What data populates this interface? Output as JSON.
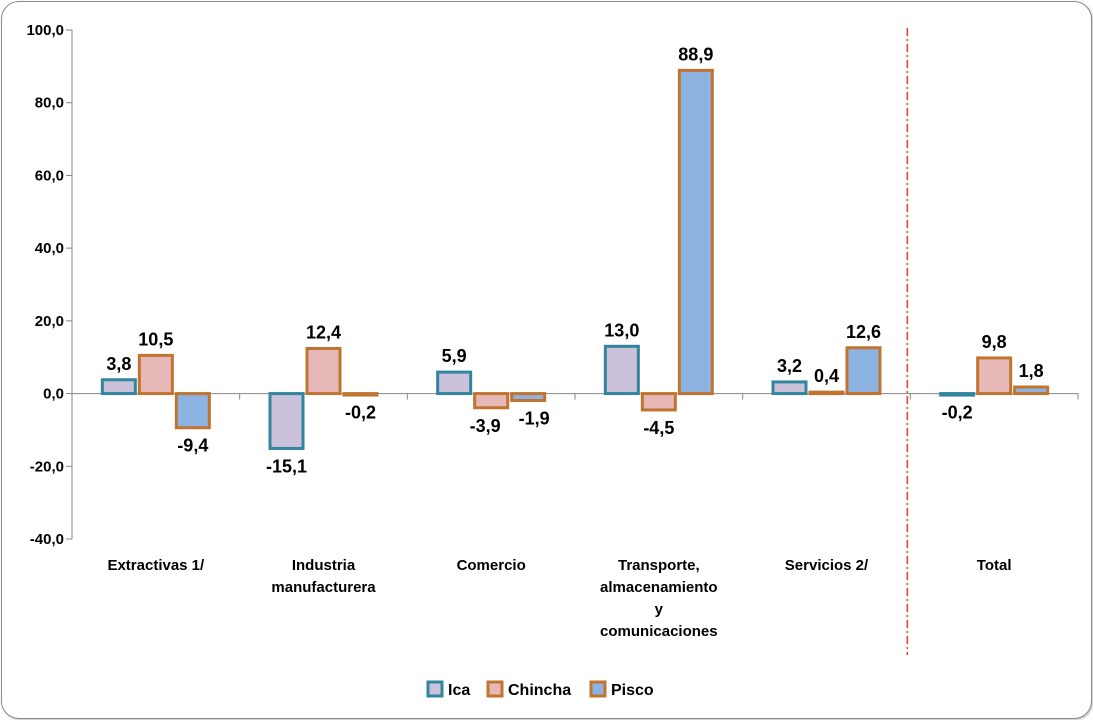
{
  "chart_data": {
    "type": "bar",
    "title": "",
    "xlabel": "",
    "ylabel": "",
    "categories": [
      [
        "Extractivas 1/"
      ],
      [
        "Industria",
        "manufacturera"
      ],
      [
        "Comercio"
      ],
      [
        "Transporte,",
        "almacenamiento",
        "y",
        "comunicaciones"
      ],
      [
        "Servicios 2/"
      ],
      [
        "Total"
      ]
    ],
    "series": [
      {
        "name": "Ica",
        "values": [
          3.8,
          -15.1,
          5.9,
          13.0,
          3.2,
          -0.2
        ],
        "fill": "#ccc1da",
        "stroke": "#31859c"
      },
      {
        "name": "Chincha",
        "values": [
          10.5,
          12.4,
          -3.9,
          -4.5,
          0.4,
          9.8
        ],
        "fill": "#e6b9b8",
        "stroke": "#c0742f"
      },
      {
        "name": "Pisco",
        "values": [
          -9.4,
          -0.2,
          -1.9,
          88.9,
          12.6,
          1.8
        ],
        "fill": "#8db3e2",
        "stroke": "#c0742f"
      }
    ],
    "data_labels": [
      [
        "3,8",
        "-15,1",
        "5,9",
        "13,0",
        "3,2",
        "-0,2"
      ],
      [
        "10,5",
        "12,4",
        "-3,9",
        "-4,5",
        "0,4",
        "9,8"
      ],
      [
        "-9,4",
        "-0,2",
        "-1,9",
        "88,9",
        "12,6",
        "1,8"
      ]
    ],
    "yticks": [
      -40,
      -20,
      0,
      20,
      40,
      60,
      80,
      100
    ],
    "ytick_labels": [
      "-40,0",
      "-20,0",
      "0,0",
      "20,0",
      "40,0",
      "60,0",
      "80,0",
      "100,0"
    ],
    "ylim": [
      -40,
      100
    ],
    "grid": false,
    "separator_before_category": 5,
    "separator_color": "#e03c31",
    "legend_position": "bottom"
  }
}
